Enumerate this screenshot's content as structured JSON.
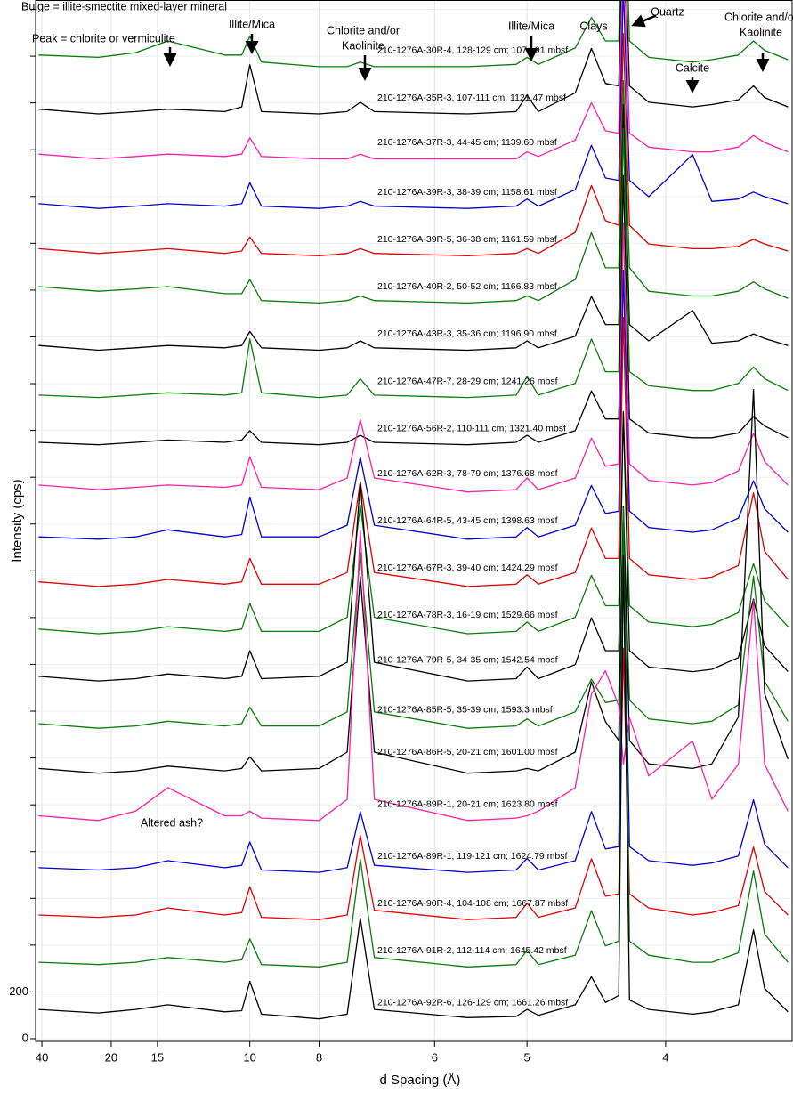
{
  "chart_data": {
    "type": "line",
    "xlabel": "d Spacing (Å)",
    "ylabel": "Intensity (cps)",
    "xscale": "reciprocal",
    "xlim": [
      44,
      3.39
    ],
    "xticks": [
      40,
      20,
      15,
      10,
      8,
      6,
      5,
      4
    ],
    "ylim": [
      0,
      4440
    ],
    "yticks": [
      0,
      200
    ],
    "minor_yticks": [
      400,
      600,
      800,
      1000,
      1200,
      1400,
      1600,
      1800,
      2000,
      2200,
      2400,
      2600,
      2800,
      3000,
      3200,
      3400,
      3600,
      3800,
      4000,
      4200,
      4400
    ],
    "grid": true,
    "annotations": [
      {
        "lines": [
          "Bulge = illite-smectite mixed-layer mineral"
        ]
      },
      {
        "lines": [
          "Peak = chlorite or vermiculite"
        ]
      },
      {
        "lines": [
          "Illite/Mica"
        ]
      },
      {
        "lines": [
          "Chlorite and/or",
          "Kaolinite"
        ]
      },
      {
        "lines": [
          "Illite/Mica"
        ]
      },
      {
        "lines": [
          "Clays"
        ]
      },
      {
        "lines": [
          "Quartz"
        ]
      },
      {
        "lines": [
          "Calcite"
        ]
      },
      {
        "lines": [
          "Chlorite and/or",
          "Kaolinite"
        ]
      },
      {
        "lines": [
          "Altered ash?"
        ]
      }
    ],
    "x": [
      42,
      22,
      17,
      14.2,
      11,
      10.3,
      10.0,
      9.6,
      8.0,
      7.4,
      7.15,
      6.9,
      5.6,
      5.1,
      5.0,
      4.9,
      4.6,
      4.48,
      4.38,
      4.29,
      4.26,
      4.22,
      4.1,
      3.85,
      3.75,
      3.62,
      3.55,
      3.5,
      3.4
    ],
    "series": [
      {
        "name": "210-1276A-30R-4, 128-129 cm; 1074.91 mbsf",
        "color": "#0a7a0a",
        "values": [
          4205,
          4195,
          4215,
          4265,
          4205,
          4205,
          4285,
          4175,
          4155,
          4155,
          4175,
          4155,
          4155,
          4165,
          4195,
          4165,
          4235,
          4365,
          4265,
          4265,
          5105,
          4265,
          4195,
          4175,
          4185,
          4205,
          4265,
          4225,
          4185
        ]
      },
      {
        "name": "210-1276A-35R-3, 107-111 cm; 1121.47 mbsf",
        "color": "#000000",
        "values": [
          3973,
          3953,
          3963,
          3973,
          3963,
          3983,
          4163,
          3963,
          3953,
          3963,
          4003,
          3963,
          3953,
          3963,
          4033,
          3963,
          4043,
          4233,
          4083,
          4073,
          4903,
          4073,
          4003,
          3983,
          3993,
          4013,
          4073,
          4023,
          3983
        ]
      },
      {
        "name": "210-1276A-37R-3, 44-45 cm; 1139.60 mbsf",
        "color": "#ff1fa8",
        "values": [
          3781,
          3761,
          3771,
          3781,
          3771,
          3781,
          3851,
          3771,
          3761,
          3761,
          3781,
          3761,
          3761,
          3761,
          3791,
          3771,
          3841,
          4001,
          3881,
          3871,
          4701,
          3871,
          3811,
          3791,
          3791,
          3811,
          3861,
          3831,
          3791
        ]
      },
      {
        "name": "210-1276A-39R-3, 38-39 cm; 1158.61 mbsf",
        "color": "#0000d0",
        "values": [
          3569,
          3549,
          3559,
          3569,
          3559,
          3569,
          3659,
          3559,
          3549,
          3559,
          3579,
          3559,
          3549,
          3559,
          3589,
          3559,
          3629,
          3819,
          3679,
          3669,
          4499,
          3669,
          3599,
          3779,
          3579,
          3589,
          3619,
          3599,
          3569
        ]
      },
      {
        "name": "210-1276A-39R-5, 36-38 cm; 1161.59 mbsf",
        "color": "#e00000",
        "values": [
          3377,
          3357,
          3367,
          3377,
          3357,
          3367,
          3427,
          3357,
          3347,
          3357,
          3377,
          3357,
          3347,
          3357,
          3377,
          3357,
          3447,
          3647,
          3497,
          3477,
          4297,
          3477,
          3397,
          3377,
          3377,
          3387,
          3417,
          3397,
          3367
        ]
      },
      {
        "name": "210-1276A-40R-2, 50-52 cm; 1166.83 mbsf",
        "color": "#0a7a0a",
        "values": [
          3215,
          3195,
          3205,
          3215,
          3185,
          3185,
          3245,
          3155,
          3145,
          3155,
          3175,
          3155,
          3145,
          3155,
          3175,
          3155,
          3245,
          3445,
          3295,
          3295,
          4095,
          3295,
          3195,
          3175,
          3175,
          3195,
          3235,
          3205,
          3165
        ]
      },
      {
        "name": "210-1276A-43R-3, 35-36 cm; 1196.90 mbsf",
        "color": "#000000",
        "values": [
          2963,
          2943,
          2953,
          2963,
          2953,
          2963,
          3023,
          2953,
          2943,
          2953,
          2983,
          2953,
          2943,
          2953,
          2983,
          2953,
          3003,
          3173,
          3053,
          3053,
          3993,
          3053,
          2983,
          3113,
          2973,
          2983,
          3013,
          2993,
          2963
        ]
      },
      {
        "name": "210-1276A-47R-7, 28-29 cm; 1241.26 mbsf",
        "color": "#0a7a0a",
        "values": [
          2751,
          2741,
          2751,
          2761,
          2751,
          2761,
          2991,
          2761,
          2741,
          2751,
          2821,
          2751,
          2741,
          2751,
          2831,
          2751,
          2801,
          2991,
          2851,
          2851,
          3891,
          2851,
          2791,
          2771,
          2771,
          2801,
          2871,
          2821,
          2771
        ]
      },
      {
        "name": "210-1276A-56R-2, 110-111 cm; 1321.40 mbsf",
        "color": "#000000",
        "values": [
          2549,
          2539,
          2549,
          2559,
          2549,
          2559,
          2599,
          2549,
          2539,
          2549,
          2579,
          2549,
          2539,
          2549,
          2579,
          2549,
          2599,
          2769,
          2649,
          2649,
          3689,
          2649,
          2589,
          2569,
          2569,
          2589,
          2659,
          2619,
          2569
        ]
      },
      {
        "name": "210-1276A-62R-3, 78-79 cm; 1376.68 mbsf",
        "color": "#ff1fa8",
        "values": [
          2367,
          2347,
          2357,
          2367,
          2357,
          2367,
          2487,
          2357,
          2347,
          2397,
          2647,
          2397,
          2337,
          2347,
          2397,
          2347,
          2397,
          2567,
          2447,
          2457,
          3487,
          2457,
          2387,
          2367,
          2377,
          2427,
          2587,
          2467,
          2367
        ]
      },
      {
        "name": "210-1276A-64R-5, 43-45 cm; 1398.63 mbsf",
        "color": "#0000d0",
        "values": [
          2145,
          2135,
          2145,
          2175,
          2145,
          2155,
          2315,
          2145,
          2145,
          2195,
          2485,
          2195,
          2135,
          2145,
          2185,
          2145,
          2195,
          2365,
          2245,
          2255,
          3285,
          2255,
          2185,
          2165,
          2175,
          2225,
          2385,
          2265,
          2165
        ]
      },
      {
        "name": "210-1276A-67R-3, 39-40 cm; 1424.29 mbsf",
        "color": "#e00000",
        "values": [
          1953,
          1933,
          1943,
          1963,
          1943,
          1953,
          2053,
          1943,
          1943,
          1993,
          2383,
          1993,
          1933,
          1943,
          1983,
          1943,
          1993,
          2183,
          2053,
          2053,
          3083,
          2053,
          1983,
          1963,
          1973,
          2023,
          2333,
          2083,
          1963
        ]
      },
      {
        "name": "210-1276A-78R-3, 16-19 cm; 1529.66 mbsf",
        "color": "#0a7a0a",
        "values": [
          1751,
          1731,
          1741,
          1761,
          1741,
          1751,
          1861,
          1741,
          1741,
          1801,
          2281,
          1801,
          1731,
          1741,
          1781,
          1741,
          1801,
          1981,
          1851,
          1851,
          2681,
          1851,
          1781,
          1761,
          1771,
          1821,
          2031,
          1871,
          1761
        ]
      },
      {
        "name": "210-1276A-79R-5, 34-35 cm; 1542.54 mbsf",
        "color": "#000000",
        "values": [
          1549,
          1529,
          1539,
          1559,
          1539,
          1549,
          1659,
          1539,
          1549,
          1609,
          2379,
          1609,
          1529,
          1539,
          1589,
          1539,
          1599,
          1799,
          1659,
          1659,
          2679,
          1659,
          1589,
          1569,
          1579,
          1629,
          1879,
          1679,
          1569
        ]
      },
      {
        "name": "210-1276A-85R-5, 35-39 cm; 1593.3 mbsf",
        "color": "#0a7a0a",
        "values": [
          1347,
          1327,
          1337,
          1357,
          1337,
          1347,
          1417,
          1337,
          1337,
          1397,
          2077,
          1397,
          1327,
          1337,
          1367,
          1337,
          1397,
          1537,
          1437,
          1447,
          2277,
          1447,
          1367,
          1347,
          1357,
          1427,
          1977,
          1527,
          1357
        ]
      },
      {
        "name": "210-1276A-86R-5, 20-21 cm; 1601.00 mbsf",
        "color": "#000000",
        "values": [
          1155,
          1135,
          1145,
          1165,
          1145,
          1155,
          1205,
          1145,
          1155,
          1225,
          1975,
          1225,
          1135,
          1145,
          1155,
          1145,
          1225,
          1525,
          1355,
          1275,
          2275,
          1275,
          1175,
          1155,
          1175,
          1375,
          2775,
          1475,
          1195
        ]
      },
      {
        "name": "210-1276A-89R-1, 20-21 cm; 1623.80 mbsf",
        "color": "#ff1fa8",
        "values": [
          953,
          933,
          973,
          1073,
          953,
          953,
          973,
          943,
          933,
          1023,
          2173,
          1023,
          933,
          943,
          953,
          973,
          1073,
          1473,
          1573,
          1423,
          1173,
          1373,
          1123,
          1273,
          1023,
          1173,
          1873,
          1173,
          973
        ]
      },
      {
        "name": "210-1276A-89R-1, 119-121 cm; 1624.79 mbsf",
        "color": "#0000d0",
        "values": [
          731,
          721,
          731,
          761,
          731,
          741,
          841,
          721,
          711,
          731,
          971,
          741,
          711,
          721,
          771,
          721,
          761,
          971,
          811,
          821,
          2171,
          821,
          761,
          741,
          751,
          781,
          1021,
          831,
          731
        ]
      },
      {
        "name": "210-1276A-90R-4, 104-108 cm; 1667.87 mbsf",
        "color": "#e00000",
        "values": [
          529,
          519,
          529,
          559,
          529,
          539,
          649,
          519,
          509,
          529,
          869,
          549,
          509,
          519,
          579,
          519,
          559,
          769,
          609,
          619,
          1669,
          619,
          559,
          529,
          539,
          569,
          819,
          629,
          529
        ]
      },
      {
        "name": "210-1276A-91R-2, 112-114 cm; 1645.42 mbsf",
        "color": "#0a7a0a",
        "values": [
          327,
          317,
          327,
          347,
          327,
          337,
          427,
          317,
          307,
          327,
          767,
          347,
          307,
          317,
          377,
          317,
          357,
          547,
          397,
          417,
          2267,
          417,
          357,
          327,
          327,
          367,
          717,
          447,
          327
        ]
      },
      {
        "name": "210-1276A-92R-6, 126-129 cm; 1661.26 mbsf",
        "color": "#000000",
        "values": [
          125,
          110,
          125,
          145,
          115,
          120,
          245,
          105,
          85,
          105,
          515,
          125,
          90,
          95,
          125,
          100,
          145,
          265,
          155,
          185,
          2065,
          165,
          125,
          105,
          115,
          145,
          465,
          215,
          115
        ]
      }
    ]
  }
}
